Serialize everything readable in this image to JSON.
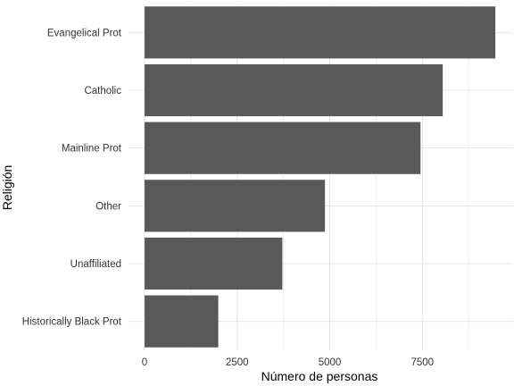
{
  "chart_data": {
    "type": "bar",
    "orientation": "horizontal",
    "title": "",
    "xlabel": "Número de personas",
    "ylabel": "Religión",
    "categories": [
      "Evangelical Prot",
      "Catholic",
      "Mainline Prot",
      "Other",
      "Unaffiliated",
      "Historically Black Prot"
    ],
    "values": [
      9470,
      8050,
      7450,
      4870,
      3720,
      1990
    ],
    "xlim": [
      0,
      9950
    ],
    "xticks": [
      0,
      2500,
      5000,
      7500
    ],
    "xtick_labels": [
      "0",
      "2500",
      "5000",
      "7500"
    ],
    "grid": true,
    "legend": "none",
    "colors": {
      "bar": "#595959",
      "grid": "#e6e6e6",
      "background": "#ffffff"
    }
  }
}
